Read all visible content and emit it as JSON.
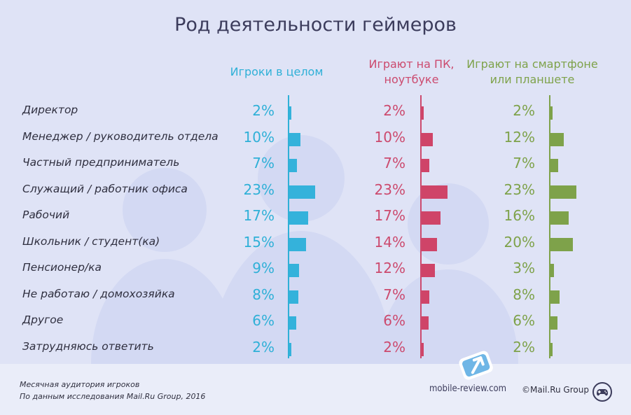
{
  "chart_data": {
    "type": "bar",
    "title": "Род деятельности геймеров",
    "categories": [
      "Директор",
      "Менеджер / руководитель отдела",
      "Частный предприниматель",
      "Служащий / работник офиса",
      "Рабочий",
      "Школьник / студент(ка)",
      "Пенсионер/ка",
      "Не работаю / домохозяйка",
      "Другое",
      "Затрудняюсь ответить"
    ],
    "series": [
      {
        "name": "Игроки в целом",
        "key": "all",
        "color": "#34b2db",
        "values": [
          2,
          10,
          7,
          23,
          17,
          15,
          9,
          8,
          6,
          2
        ]
      },
      {
        "name": "Играют на ПК, ноутбуке",
        "key": "pc",
        "color": "#cf4468",
        "values": [
          2,
          10,
          7,
          23,
          17,
          14,
          12,
          7,
          6,
          2
        ]
      },
      {
        "name": "Играют на смартфоне или планшете",
        "key": "mob",
        "color": "#7ea24a",
        "values": [
          2,
          12,
          7,
          23,
          16,
          20,
          3,
          8,
          6,
          2
        ]
      }
    ],
    "headers": {
      "all": "Игроки в целом",
      "pc_line1": "Играют на ПК,",
      "pc_line2": "ноутбуке",
      "mob_line1": "Играют на смартфоне",
      "mob_line2": "или планшете"
    },
    "value_suffix": "%",
    "xlim": [
      0,
      23
    ]
  },
  "footer": {
    "source_line1": "Месячная аудитория игроков",
    "source_line2": "По данным исследования Mail.Ru Group, 2016",
    "site": "mobile-review.com",
    "copyright": "©Mail.Ru Group"
  },
  "icons": {
    "logo": "mobile-review-logo-icon",
    "gamepad": "gamepad-icon"
  }
}
